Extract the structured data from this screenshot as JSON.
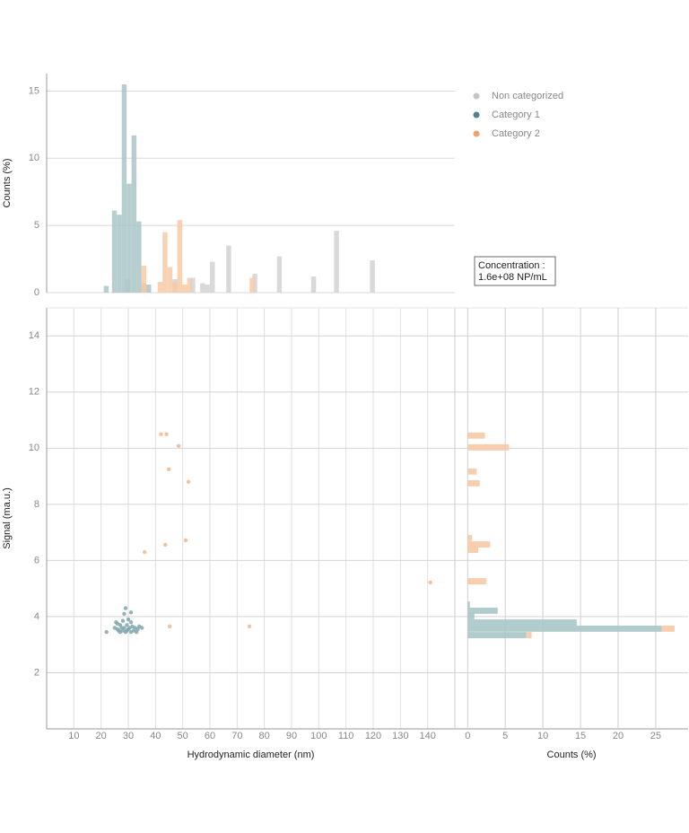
{
  "chart_data": [
    {
      "type": "histogram",
      "ylabel": "Counts (%)",
      "xlim": [
        0,
        150
      ],
      "ylim": [
        0,
        16.3
      ],
      "yticks": [
        0,
        5,
        10,
        15
      ],
      "grid": true,
      "bin_width": 1.8,
      "legend": "upper right",
      "series": [
        {
          "name": "Non categorized",
          "color": "#c4c4c4",
          "bar_color": "#d2d2d2",
          "x": [
            28.8,
            46.2,
            52.8,
            56.4,
            58.2,
            60,
            66,
            75.6,
            84.6,
            97.2,
            105.6,
            118.8
          ],
          "values": [
            1.0,
            1.0,
            1.1,
            0.7,
            0.6,
            2.3,
            3.5,
            1.4,
            2.7,
            1.2,
            4.6,
            2.4
          ]
        },
        {
          "name": "Category 1",
          "color": "#4f8191",
          "bar_color": "#a9c6c7",
          "x": [
            21,
            24,
            25.8,
            27.6,
            29.4,
            31.2,
            33,
            34.8,
            36.6
          ],
          "values": [
            0.5,
            6.1,
            5.8,
            15.5,
            8.1,
            11.7,
            5.3,
            0.7,
            0.6
          ]
        },
        {
          "name": "Category 2",
          "color": "#f0a46c",
          "bar_color": "#f8c9a6",
          "x": [
            34.8,
            40.8,
            42.6,
            44.4,
            46.2,
            48,
            49.8,
            51.6,
            74.6
          ],
          "values": [
            2.0,
            0.8,
            4.5,
            1.9,
            0.8,
            5.4,
            0.6,
            1.1,
            1.1
          ]
        }
      ],
      "annotation": [
        "Concentration :",
        "1.6e+08 NP/mL"
      ]
    },
    {
      "type": "scatter",
      "xlabel": "Hydrodynamic diameter (nm)",
      "ylabel": "Signal (ma.u.)",
      "xlim": [
        0,
        150
      ],
      "ylim": [
        0,
        15
      ],
      "xticks": [
        10,
        20,
        30,
        40,
        50,
        60,
        70,
        80,
        90,
        100,
        110,
        120,
        130,
        140
      ],
      "yticks": [
        2,
        4,
        6,
        8,
        10,
        12,
        14
      ],
      "grid": true,
      "series": [
        {
          "color": "#7fa6ab",
          "x": [
            22,
            25,
            25.5,
            26,
            26.5,
            27,
            27,
            27.5,
            28,
            28,
            28.5,
            28.5,
            29,
            29,
            29.5,
            30,
            30,
            30.5,
            31,
            31,
            31.5,
            32,
            32.5,
            33,
            33.5,
            34,
            35,
            26,
            29.5,
            31
          ],
          "y": [
            3.45,
            3.6,
            3.8,
            3.55,
            3.5,
            3.7,
            3.45,
            3.6,
            3.5,
            3.85,
            4.1,
            3.6,
            3.45,
            4.3,
            3.7,
            3.55,
            3.9,
            3.6,
            3.45,
            4.15,
            3.65,
            3.5,
            3.6,
            3.45,
            3.55,
            3.65,
            3.6,
            3.75,
            3.5,
            3.8
          ]
        },
        {
          "color": "#f3b58a",
          "x": [
            42,
            44,
            48.5,
            44.9,
            52.1,
            51.1,
            43.6,
            36,
            45.2,
            74.5,
            141
          ],
          "y": [
            10.5,
            10.5,
            10.08,
            9.25,
            8.8,
            6.72,
            6.56,
            6.3,
            3.65,
            3.65,
            5.22
          ]
        }
      ]
    },
    {
      "type": "histogram",
      "orientation": "horizontal",
      "stacked": true,
      "xlabel": "Counts (%)",
      "xlim": [
        -1.7,
        29.3
      ],
      "xticks": [
        0,
        5,
        10,
        15,
        20,
        25
      ],
      "ylim": [
        0,
        15
      ],
      "grid": true,
      "bin_height": 0.22,
      "series": [
        {
          "color": "#a9c6c7",
          "y": [
            4.32,
            4.1,
            3.9,
            3.68,
            3.46,
            3.23
          ],
          "values": [
            0.3,
            4.0,
            0.9,
            14.5,
            25.8,
            7.8
          ]
        },
        {
          "color": "#f8c9a6",
          "y": [
            10.34,
            9.92,
            9.06,
            8.64,
            6.69,
            6.46,
            6.27,
            5.15,
            3.46,
            3.23
          ],
          "values": [
            2.3,
            5.5,
            1.2,
            1.6,
            0.6,
            3.0,
            1.4,
            2.5,
            1.7,
            0.7
          ]
        }
      ]
    }
  ]
}
